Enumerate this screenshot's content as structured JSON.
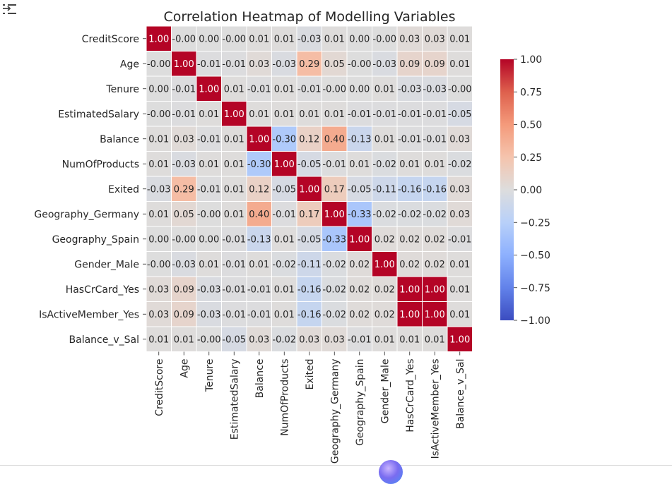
{
  "colors": {
    "low": "#3b4cc0",
    "mid": "#dddddd",
    "high": "#b40426",
    "text_dark": "#262626",
    "text_light": "#ffffff",
    "cell_border": "#ffffff",
    "toolbar_icon": "#444444"
  },
  "toolbar": {
    "icon_name": "output-collapse-icon"
  },
  "chart_data": {
    "type": "heatmap",
    "title": "Correlation Heatmap of Modelling Variables",
    "rows": [
      "CreditScore",
      "Age",
      "Tenure",
      "EstimatedSalary",
      "Balance",
      "NumOfProducts",
      "Exited",
      "Geography_Germany",
      "Geography_Spain",
      "Gender_Male",
      "HasCrCard_Yes",
      "IsActiveMember_Yes",
      "Balance_v_Sal"
    ],
    "columns": [
      "CreditScore",
      "Age",
      "Tenure",
      "EstimatedSalary",
      "Balance",
      "NumOfProducts",
      "Exited",
      "Geography_Germany",
      "Geography_Spain",
      "Gender_Male",
      "HasCrCard_Yes",
      "IsActiveMember_Yes",
      "Balance_v_Sal"
    ],
    "values": [
      [
        1.0,
        -0.0,
        0.0,
        -0.0,
        0.01,
        0.01,
        -0.03,
        0.01,
        0.0,
        -0.0,
        0.03,
        0.03,
        0.01
      ],
      [
        -0.0,
        1.0,
        -0.01,
        -0.01,
        0.03,
        -0.03,
        0.29,
        0.05,
        -0.0,
        -0.03,
        0.09,
        0.09,
        0.01
      ],
      [
        0.0,
        -0.01,
        1.0,
        0.01,
        -0.01,
        0.01,
        -0.01,
        -0.0,
        0.0,
        0.01,
        -0.03,
        -0.03,
        -0.0
      ],
      [
        -0.0,
        -0.01,
        0.01,
        1.0,
        0.01,
        0.01,
        0.01,
        0.01,
        -0.01,
        -0.01,
        -0.01,
        -0.01,
        -0.05
      ],
      [
        0.01,
        0.03,
        -0.01,
        0.01,
        1.0,
        -0.3,
        0.12,
        0.4,
        -0.13,
        0.01,
        -0.01,
        -0.01,
        0.03
      ],
      [
        0.01,
        -0.03,
        0.01,
        0.01,
        -0.3,
        1.0,
        -0.05,
        -0.01,
        0.01,
        -0.02,
        0.01,
        0.01,
        -0.02
      ],
      [
        -0.03,
        0.29,
        -0.01,
        0.01,
        0.12,
        -0.05,
        1.0,
        0.17,
        -0.05,
        -0.11,
        -0.16,
        -0.16,
        0.03
      ],
      [
        0.01,
        0.05,
        -0.0,
        0.01,
        0.4,
        -0.01,
        0.17,
        1.0,
        -0.33,
        -0.02,
        -0.02,
        -0.02,
        0.03
      ],
      [
        0.0,
        -0.0,
        0.0,
        -0.01,
        -0.13,
        0.01,
        -0.05,
        -0.33,
        1.0,
        0.02,
        0.02,
        0.02,
        -0.01
      ],
      [
        -0.0,
        -0.03,
        0.01,
        -0.01,
        0.01,
        -0.02,
        -0.11,
        -0.02,
        0.02,
        1.0,
        0.02,
        0.02,
        0.01
      ],
      [
        0.03,
        0.09,
        -0.03,
        -0.01,
        -0.01,
        0.01,
        -0.16,
        -0.02,
        0.02,
        0.02,
        1.0,
        1.0,
        0.01
      ],
      [
        0.03,
        0.09,
        -0.03,
        -0.01,
        -0.01,
        0.01,
        -0.16,
        -0.02,
        0.02,
        0.02,
        1.0,
        1.0,
        0.01
      ],
      [
        0.01,
        0.01,
        -0.0,
        -0.05,
        0.03,
        -0.02,
        0.03,
        0.03,
        -0.01,
        0.01,
        0.01,
        0.01,
        1.0
      ]
    ],
    "annotation_format": "0.00",
    "colormap": "coolwarm",
    "vmin": -1.0,
    "vmax": 1.0,
    "colorbar_ticks": [
      1.0,
      0.75,
      0.5,
      0.25,
      0.0,
      -0.25,
      -0.5,
      -0.75,
      -1.0
    ],
    "colorbar_tick_labels": [
      "1.00",
      "0.75",
      "0.50",
      "0.25",
      "0.00",
      "−0.25",
      "−0.50",
      "−0.75",
      "−1.00"
    ],
    "colorbar_position": "right",
    "grid": false
  }
}
